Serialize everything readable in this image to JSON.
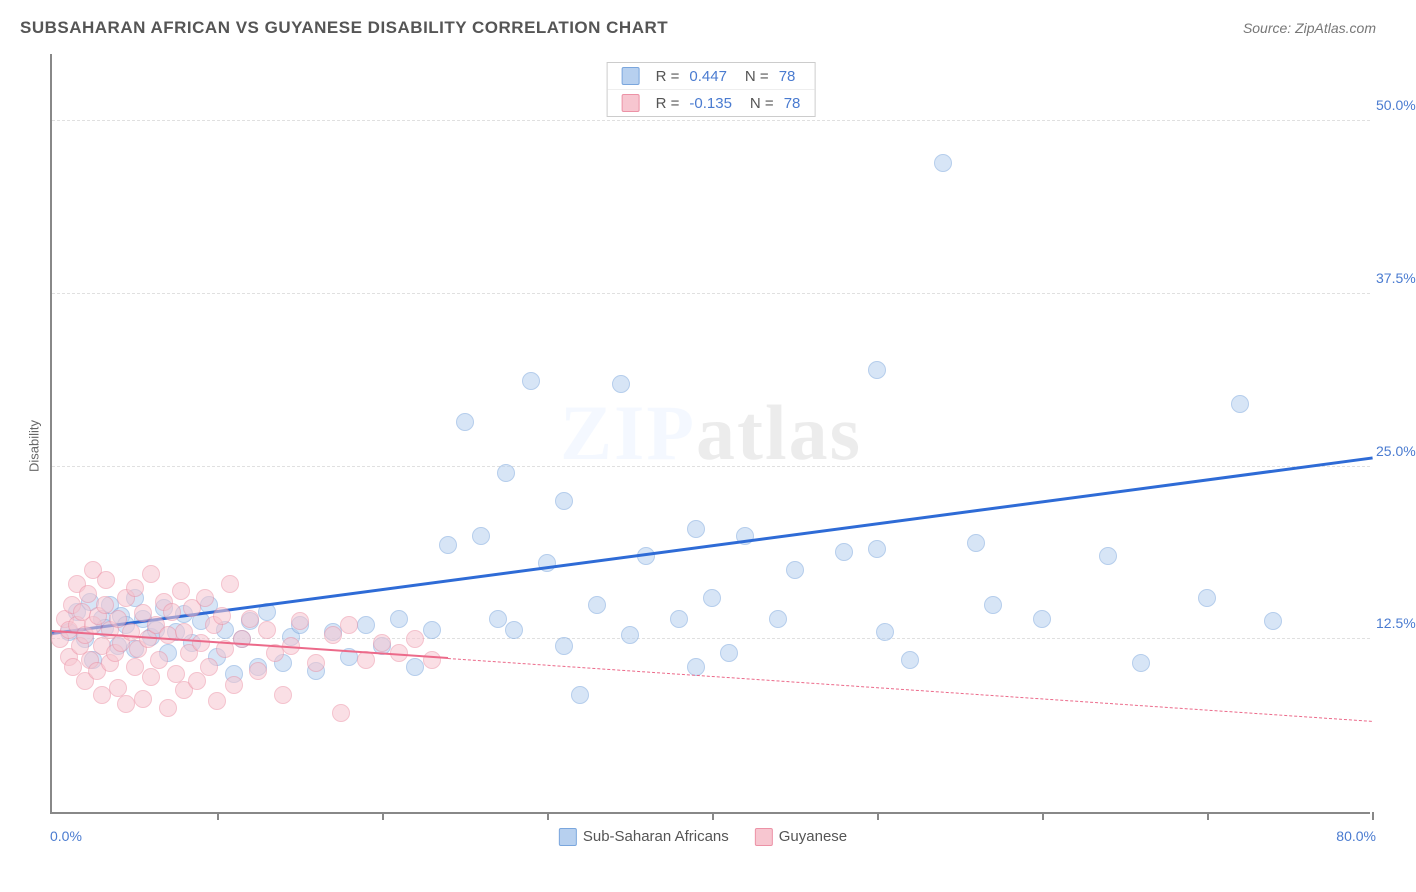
{
  "title": "SUBSAHARAN AFRICAN VS GUYANESE DISABILITY CORRELATION CHART",
  "source": "Source: ZipAtlas.com",
  "ylabel": "Disability",
  "watermark_pre": "ZIP",
  "watermark_post": "atlas",
  "chart": {
    "type": "scatter",
    "xlim": [
      0,
      80
    ],
    "ylim": [
      0,
      55
    ],
    "xticks": [
      0,
      10,
      20,
      30,
      40,
      50,
      60,
      70,
      80
    ],
    "yticks": [
      12.5,
      25.0,
      37.5,
      50.0
    ],
    "yticklabels": [
      "12.5%",
      "25.0%",
      "37.5%",
      "50.0%"
    ],
    "xmin_label": "0.0%",
    "xmax_label": "80.0%",
    "grid_color": "#e0e0e0",
    "axis_color": "#888888",
    "marker_radius": 9,
    "marker_border_width": 1.2,
    "series": [
      {
        "name": "Sub-Saharan Africans",
        "fill": "#b7d0ef",
        "stroke": "#7aa6dd",
        "trend": {
          "x1": 0,
          "y1": 12.8,
          "x2": 80,
          "y2": 25.5,
          "color": "#2e6bd6",
          "width": 3,
          "dash": false,
          "solid_until_x": 80
        },
        "points": [
          [
            1,
            13
          ],
          [
            1.5,
            14.5
          ],
          [
            2,
            12.5
          ],
          [
            2.3,
            15.2
          ],
          [
            2.5,
            11
          ],
          [
            3,
            14
          ],
          [
            3.2,
            13.3
          ],
          [
            3.5,
            15
          ],
          [
            4,
            12
          ],
          [
            4.2,
            14.2
          ],
          [
            4.5,
            13.5
          ],
          [
            5,
            15.5
          ],
          [
            5,
            11.8
          ],
          [
            5.5,
            14
          ],
          [
            6,
            12.7
          ],
          [
            6.3,
            13.2
          ],
          [
            6.8,
            14.8
          ],
          [
            7,
            11.5
          ],
          [
            7.5,
            13
          ],
          [
            8,
            14.3
          ],
          [
            8.5,
            12.2
          ],
          [
            9,
            13.8
          ],
          [
            9.5,
            15
          ],
          [
            10,
            11.2
          ],
          [
            10.5,
            13.2
          ],
          [
            11,
            10
          ],
          [
            11.5,
            12.5
          ],
          [
            12,
            13.8
          ],
          [
            12.5,
            10.5
          ],
          [
            13,
            14.5
          ],
          [
            14,
            10.8
          ],
          [
            14.5,
            12.7
          ],
          [
            15,
            13.5
          ],
          [
            16,
            10.2
          ],
          [
            17,
            13
          ],
          [
            18,
            11.2
          ],
          [
            19,
            13.5
          ],
          [
            20,
            12
          ],
          [
            21,
            14
          ],
          [
            22,
            10.5
          ],
          [
            23,
            13.2
          ],
          [
            24,
            19.3
          ],
          [
            25,
            28.2
          ],
          [
            26,
            20
          ],
          [
            27,
            14
          ],
          [
            27.5,
            24.5
          ],
          [
            28,
            13.2
          ],
          [
            29,
            31.2
          ],
          [
            30,
            18
          ],
          [
            31,
            12
          ],
          [
            31,
            22.5
          ],
          [
            32,
            8.5
          ],
          [
            33,
            15
          ],
          [
            34.5,
            31
          ],
          [
            35,
            12.8
          ],
          [
            36,
            18.5
          ],
          [
            38,
            14
          ],
          [
            39,
            10.5
          ],
          [
            39,
            20.5
          ],
          [
            40,
            15.5
          ],
          [
            41,
            11.5
          ],
          [
            42,
            20
          ],
          [
            44,
            14
          ],
          [
            45,
            17.5
          ],
          [
            48,
            18.8
          ],
          [
            50,
            32
          ],
          [
            50,
            19
          ],
          [
            50.5,
            13
          ],
          [
            52,
            11
          ],
          [
            54,
            47
          ],
          [
            56,
            19.5
          ],
          [
            57,
            15
          ],
          [
            60,
            14
          ],
          [
            64,
            18.5
          ],
          [
            66,
            10.8
          ],
          [
            70,
            15.5
          ],
          [
            72,
            29.5
          ],
          [
            74,
            13.8
          ]
        ]
      },
      {
        "name": "Guyanese",
        "fill": "#f7c6d0",
        "stroke": "#ec92a6",
        "trend": {
          "x1": 0,
          "y1": 13.0,
          "x2": 80,
          "y2": 6.5,
          "color": "#ec6a8a",
          "width": 2,
          "dash": true,
          "solid_until_x": 24
        },
        "points": [
          [
            0.5,
            12.5
          ],
          [
            0.8,
            14
          ],
          [
            1,
            11.2
          ],
          [
            1,
            13.2
          ],
          [
            1.2,
            15
          ],
          [
            1.3,
            10.5
          ],
          [
            1.5,
            13.5
          ],
          [
            1.5,
            16.5
          ],
          [
            1.7,
            12
          ],
          [
            1.8,
            14.5
          ],
          [
            2,
            9.5
          ],
          [
            2,
            12.8
          ],
          [
            2.2,
            15.8
          ],
          [
            2.3,
            11
          ],
          [
            2.5,
            13.5
          ],
          [
            2.5,
            17.5
          ],
          [
            2.7,
            10.2
          ],
          [
            2.8,
            14.2
          ],
          [
            3,
            8.5
          ],
          [
            3,
            12
          ],
          [
            3.2,
            15
          ],
          [
            3.3,
            16.8
          ],
          [
            3.5,
            10.8
          ],
          [
            3.5,
            13.2
          ],
          [
            3.8,
            11.5
          ],
          [
            4,
            9
          ],
          [
            4,
            14
          ],
          [
            4.2,
            12.2
          ],
          [
            4.5,
            15.5
          ],
          [
            4.5,
            7.8
          ],
          [
            4.8,
            13
          ],
          [
            5,
            10.5
          ],
          [
            5,
            16.2
          ],
          [
            5.2,
            11.8
          ],
          [
            5.5,
            14.4
          ],
          [
            5.5,
            8.2
          ],
          [
            5.8,
            12.5
          ],
          [
            6,
            17.2
          ],
          [
            6,
            9.8
          ],
          [
            6.3,
            13.5
          ],
          [
            6.5,
            11
          ],
          [
            6.8,
            15.2
          ],
          [
            7,
            7.5
          ],
          [
            7,
            12.8
          ],
          [
            7.3,
            14.5
          ],
          [
            7.5,
            10
          ],
          [
            7.8,
            16
          ],
          [
            8,
            13
          ],
          [
            8,
            8.8
          ],
          [
            8.3,
            11.5
          ],
          [
            8.5,
            14.8
          ],
          [
            8.8,
            9.5
          ],
          [
            9,
            12.2
          ],
          [
            9.3,
            15.5
          ],
          [
            9.5,
            10.5
          ],
          [
            9.8,
            13.5
          ],
          [
            10,
            8
          ],
          [
            10.3,
            14.2
          ],
          [
            10.5,
            11.8
          ],
          [
            10.8,
            16.5
          ],
          [
            11,
            9.2
          ],
          [
            11.5,
            12.5
          ],
          [
            12,
            14
          ],
          [
            12.5,
            10.2
          ],
          [
            13,
            13.2
          ],
          [
            13.5,
            11.5
          ],
          [
            14,
            8.5
          ],
          [
            14.5,
            12
          ],
          [
            15,
            13.8
          ],
          [
            16,
            10.8
          ],
          [
            17,
            12.8
          ],
          [
            17.5,
            7.2
          ],
          [
            18,
            13.5
          ],
          [
            19,
            11
          ],
          [
            20,
            12.2
          ],
          [
            21,
            11.5
          ],
          [
            22,
            12.5
          ],
          [
            23,
            11
          ]
        ]
      }
    ],
    "legend_bottom": [
      {
        "swatch_fill": "#b7d0ef",
        "swatch_stroke": "#7aa6dd",
        "label": "Sub-Saharan Africans"
      },
      {
        "swatch_fill": "#f7c6d0",
        "swatch_stroke": "#ec92a6",
        "label": "Guyanese"
      }
    ],
    "legend_stats": [
      {
        "swatch_fill": "#b7d0ef",
        "swatch_stroke": "#7aa6dd",
        "R": "0.447",
        "N": "78"
      },
      {
        "swatch_fill": "#f7c6d0",
        "swatch_stroke": "#ec92a6",
        "R": "-0.135",
        "N": "78"
      }
    ]
  }
}
